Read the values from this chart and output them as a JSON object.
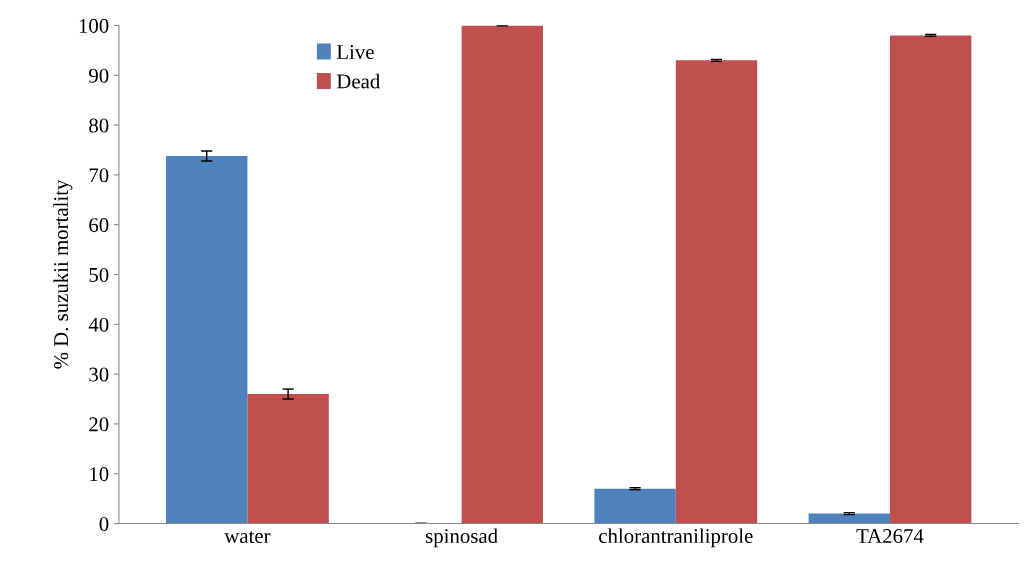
{
  "chart_data": {
    "type": "bar",
    "ylabel": "% D. suzukii mortality",
    "categories": [
      "water",
      "spinosad",
      "chlorantraniliprole",
      "TA2674"
    ],
    "series": [
      {
        "name": "Live",
        "color": "#4f81bd",
        "values": [
          73.8,
          0,
          7,
          2
        ],
        "errors": [
          1,
          0,
          0.2,
          0.2
        ]
      },
      {
        "name": "Dead",
        "color": "#c0504d",
        "values": [
          26,
          100,
          93,
          98
        ],
        "errors": [
          1,
          0,
          0.2,
          0.2
        ]
      }
    ],
    "ylim": [
      0,
      100
    ],
    "yticks": [
      0,
      10,
      20,
      30,
      40,
      50,
      60,
      70,
      80,
      90,
      100
    ],
    "grid": false,
    "legend": "top left"
  }
}
